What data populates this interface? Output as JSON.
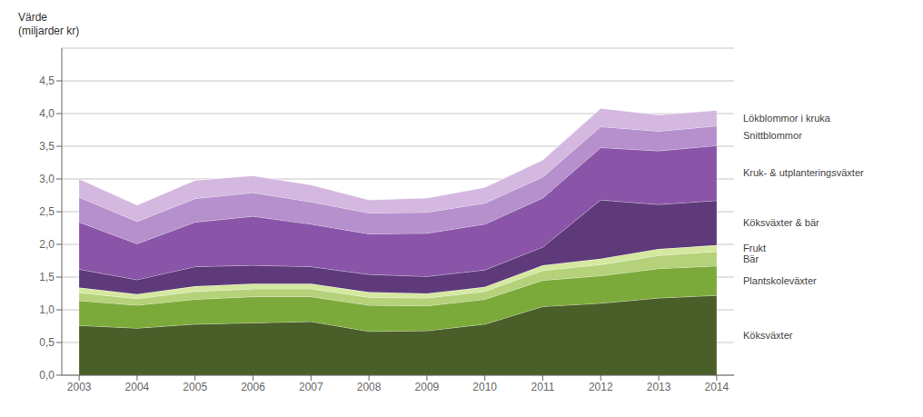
{
  "chart_data": {
    "type": "area",
    "stacked": true,
    "y_label": "Värde\n(miljarder kr)",
    "x": [
      2003,
      2004,
      2005,
      2006,
      2007,
      2008,
      2009,
      2010,
      2011,
      2012,
      2013,
      2014
    ],
    "xlim": [
      2002.7,
      2014.3
    ],
    "xticks": [
      2003,
      2004,
      2005,
      2006,
      2007,
      2008,
      2009,
      2010,
      2011,
      2012,
      2013,
      2014
    ],
    "ylim": [
      0,
      5.0
    ],
    "yticks": [
      {
        "value": 0.0,
        "label": "0,0"
      },
      {
        "value": 0.5,
        "label": "0,5"
      },
      {
        "value": 1.0,
        "label": "1,0"
      },
      {
        "value": 1.5,
        "label": "1,5"
      },
      {
        "value": 2.0,
        "label": "2,0"
      },
      {
        "value": 2.5,
        "label": "2,5"
      },
      {
        "value": 3.0,
        "label": "3,0"
      },
      {
        "value": 3.5,
        "label": "3,5"
      },
      {
        "value": 4.0,
        "label": "4,0"
      },
      {
        "value": 4.5,
        "label": "4,5"
      }
    ],
    "grid": true,
    "legend": "right",
    "series": [
      {
        "name": "Köksväxter",
        "color": "#4a5e2a",
        "values": [
          0.76,
          0.72,
          0.78,
          0.8,
          0.82,
          0.67,
          0.68,
          0.78,
          1.05,
          1.1,
          1.18,
          1.22
        ]
      },
      {
        "name": "Plantskoleväxter",
        "color": "#7caa3a",
        "values": [
          0.38,
          0.35,
          0.38,
          0.4,
          0.38,
          0.4,
          0.38,
          0.38,
          0.4,
          0.42,
          0.45,
          0.45
        ]
      },
      {
        "name": "Bär",
        "color": "#b5d17a",
        "values": [
          0.12,
          0.1,
          0.12,
          0.12,
          0.12,
          0.12,
          0.12,
          0.12,
          0.15,
          0.17,
          0.2,
          0.22
        ]
      },
      {
        "name": "Frukt",
        "color": "#d4e8a0",
        "values": [
          0.08,
          0.07,
          0.08,
          0.08,
          0.08,
          0.08,
          0.07,
          0.07,
          0.08,
          0.09,
          0.1,
          0.1
        ]
      },
      {
        "name": "Köksväxter & bär",
        "color": "#5e3a7a",
        "values": [
          0.28,
          0.22,
          0.3,
          0.28,
          0.26,
          0.27,
          0.26,
          0.26,
          0.28,
          0.9,
          0.68,
          0.68
        ]
      },
      {
        "name": "Kruk- & utplanteringsväxter",
        "color": "#8a55a8",
        "values": [
          0.72,
          0.55,
          0.68,
          0.75,
          0.65,
          0.62,
          0.66,
          0.7,
          0.75,
          0.8,
          0.82,
          0.84
        ]
      },
      {
        "name": "Snittblommor",
        "color": "#b590cc",
        "values": [
          0.38,
          0.34,
          0.36,
          0.36,
          0.34,
          0.32,
          0.32,
          0.32,
          0.32,
          0.32,
          0.3,
          0.3
        ]
      },
      {
        "name": "Lökblommor i kruka",
        "color": "#d4b8e0",
        "values": [
          0.28,
          0.25,
          0.28,
          0.26,
          0.26,
          0.2,
          0.22,
          0.24,
          0.26,
          0.28,
          0.25,
          0.24
        ]
      }
    ]
  }
}
